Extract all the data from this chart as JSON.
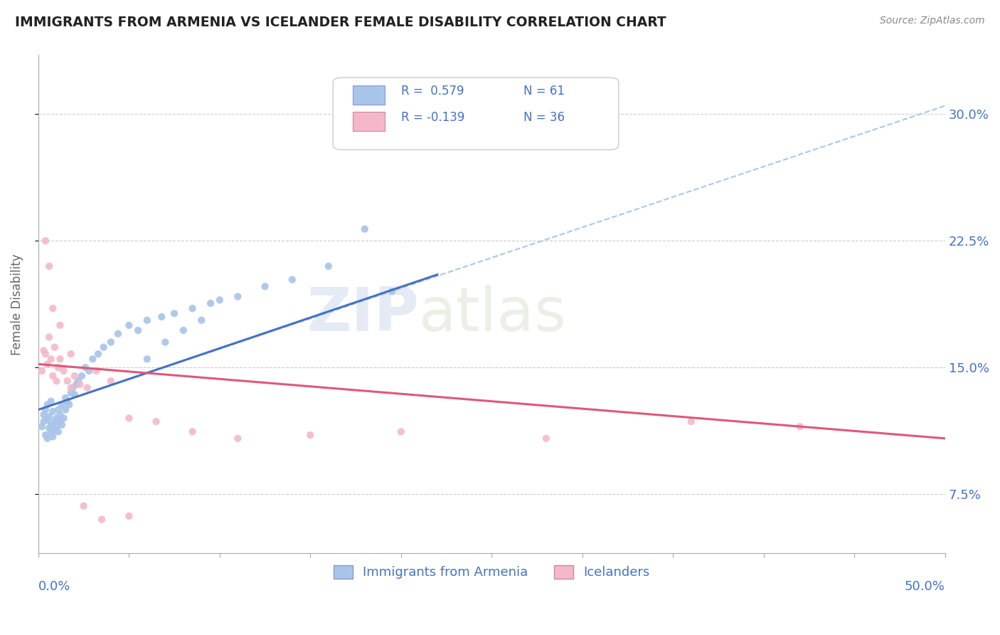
{
  "title": "IMMIGRANTS FROM ARMENIA VS ICELANDER FEMALE DISABILITY CORRELATION CHART",
  "source": "Source: ZipAtlas.com",
  "ylabel": "Female Disability",
  "yticks": [
    0.075,
    0.15,
    0.225,
    0.3
  ],
  "ytick_labels": [
    "7.5%",
    "15.0%",
    "22.5%",
    "30.0%"
  ],
  "xlim": [
    0.0,
    0.5
  ],
  "ylim": [
    0.04,
    0.335
  ],
  "series1_color": "#A8C4E8",
  "series2_color": "#F4B8C8",
  "trend1_color": "#4472C4",
  "trend2_color": "#E05878",
  "trend_dashed_color": "#A8C8E8",
  "legend_R1": "R =  0.579",
  "legend_N1": "N = 61",
  "legend_R2": "R = -0.139",
  "legend_N2": "N = 36",
  "legend_label1": "Immigrants from Armenia",
  "legend_label2": "Icelanders",
  "watermark_zip": "ZIP",
  "watermark_atlas": "atlas",
  "background_color": "#ffffff",
  "grid_color": "#cccccc",
  "axis_label_color": "#4472C4",
  "title_color": "#222222",
  "series1_x": [
    0.002,
    0.003,
    0.003,
    0.004,
    0.004,
    0.005,
    0.005,
    0.005,
    0.006,
    0.006,
    0.007,
    0.007,
    0.007,
    0.008,
    0.008,
    0.009,
    0.009,
    0.01,
    0.01,
    0.011,
    0.011,
    0.012,
    0.012,
    0.013,
    0.013,
    0.014,
    0.015,
    0.015,
    0.016,
    0.017,
    0.018,
    0.019,
    0.02,
    0.021,
    0.022,
    0.024,
    0.026,
    0.028,
    0.03,
    0.033,
    0.036,
    0.04,
    0.044,
    0.05,
    0.055,
    0.06,
    0.068,
    0.075,
    0.085,
    0.095,
    0.11,
    0.125,
    0.14,
    0.16,
    0.06,
    0.07,
    0.08,
    0.09,
    0.1,
    0.18,
    0.195
  ],
  "series1_y": [
    0.115,
    0.118,
    0.122,
    0.11,
    0.125,
    0.108,
    0.119,
    0.128,
    0.114,
    0.121,
    0.112,
    0.116,
    0.13,
    0.109,
    0.124,
    0.113,
    0.118,
    0.115,
    0.12,
    0.112,
    0.125,
    0.118,
    0.122,
    0.116,
    0.128,
    0.12,
    0.125,
    0.132,
    0.13,
    0.128,
    0.135,
    0.138,
    0.134,
    0.14,
    0.142,
    0.145,
    0.15,
    0.148,
    0.155,
    0.158,
    0.162,
    0.165,
    0.17,
    0.175,
    0.172,
    0.178,
    0.18,
    0.182,
    0.185,
    0.188,
    0.192,
    0.198,
    0.202,
    0.21,
    0.155,
    0.165,
    0.172,
    0.178,
    0.19,
    0.232,
    0.195
  ],
  "series2_x": [
    0.002,
    0.003,
    0.004,
    0.005,
    0.006,
    0.007,
    0.008,
    0.009,
    0.01,
    0.011,
    0.012,
    0.014,
    0.016,
    0.018,
    0.02,
    0.023,
    0.027,
    0.032,
    0.04,
    0.05,
    0.065,
    0.085,
    0.11,
    0.15,
    0.2,
    0.28,
    0.36,
    0.42,
    0.004,
    0.006,
    0.008,
    0.012,
    0.018,
    0.025,
    0.035,
    0.05
  ],
  "series2_y": [
    0.148,
    0.16,
    0.158,
    0.152,
    0.168,
    0.155,
    0.145,
    0.162,
    0.142,
    0.15,
    0.155,
    0.148,
    0.142,
    0.138,
    0.145,
    0.14,
    0.138,
    0.148,
    0.142,
    0.12,
    0.118,
    0.112,
    0.108,
    0.11,
    0.112,
    0.108,
    0.118,
    0.115,
    0.225,
    0.21,
    0.185,
    0.175,
    0.158,
    0.068,
    0.06,
    0.062
  ],
  "trend1_x0": 0.0,
  "trend1_y0": 0.125,
  "trend1_x1": 0.22,
  "trend1_y1": 0.205,
  "trend1_dash_x0": 0.0,
  "trend1_dash_y0": 0.125,
  "trend1_dash_x1": 0.5,
  "trend1_dash_y1": 0.305,
  "trend2_x0": 0.0,
  "trend2_y0": 0.152,
  "trend2_x1": 0.5,
  "trend2_y1": 0.108
}
